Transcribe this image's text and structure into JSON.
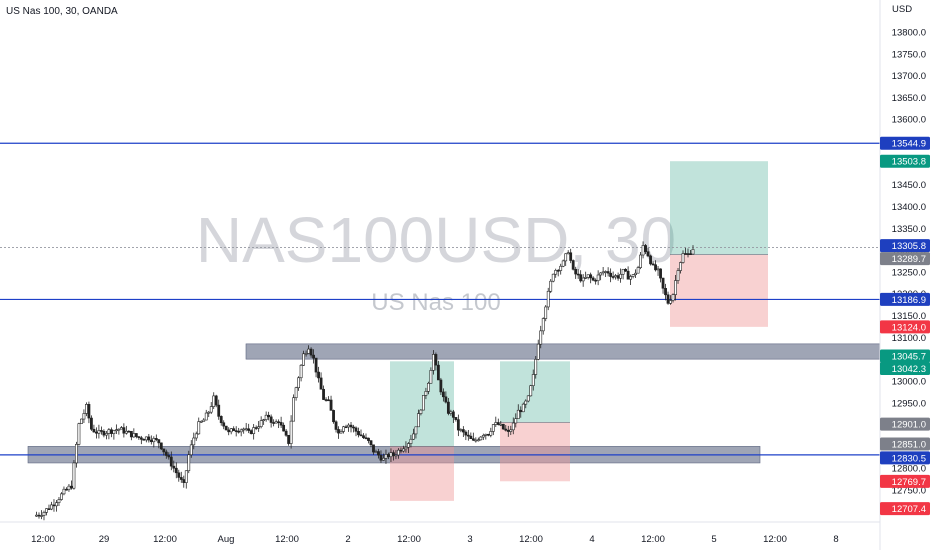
{
  "header": {
    "title": "US Nas 100, 30, OANDA"
  },
  "watermark": {
    "symbol": "NAS100USD, 30",
    "name": "US Nas 100"
  },
  "currency": "USD",
  "colors": {
    "level_line": "#1e40c8",
    "zone_fill": "#7a8299",
    "profit_fill": "#3fa98f",
    "loss_fill": "#ef9a9a",
    "bull": "#26a69a",
    "bear": "#ef5350",
    "candle": "#222222",
    "badge_blue": "#1e3fbf",
    "badge_green": "#089981",
    "badge_red": "#f23645",
    "badge_gray": "#7d808a",
    "badge_dark": "#5d606b"
  },
  "chart_data": {
    "type": "candlestick",
    "symbol": "NAS100USD",
    "timeframe": "30",
    "ylim": [
      12690,
      13870
    ],
    "y_ticks": [
      12750,
      12800,
      12850,
      12900,
      12950,
      13000,
      13050,
      13100,
      13150,
      13200,
      13250,
      13300,
      13350,
      13400,
      13450,
      13500,
      13550,
      13600,
      13650,
      13700,
      13750,
      13800
    ],
    "x_ticks": [
      "12:00",
      "29",
      "12:00",
      "Aug",
      "12:00",
      "2",
      "12:00",
      "3",
      "12:00",
      "4",
      "12:00",
      "5",
      "12:00",
      "8"
    ],
    "path": [
      [
        0,
        12690
      ],
      [
        4,
        12700
      ],
      [
        8,
        12720
      ],
      [
        12,
        12745
      ],
      [
        15,
        12760
      ],
      [
        18,
        12900
      ],
      [
        21,
        12940
      ],
      [
        23,
        12890
      ],
      [
        26,
        12880
      ],
      [
        30,
        12885
      ],
      [
        34,
        12890
      ],
      [
        38,
        12880
      ],
      [
        42,
        12870
      ],
      [
        46,
        12870
      ],
      [
        50,
        12860
      ],
      [
        53,
        12830
      ],
      [
        56,
        12800
      ],
      [
        58,
        12780
      ],
      [
        60,
        12760
      ],
      [
        62,
        12830
      ],
      [
        64,
        12870
      ],
      [
        66,
        12900
      ],
      [
        68,
        12910
      ],
      [
        70,
        12930
      ],
      [
        72,
        12960
      ],
      [
        74,
        12920
      ],
      [
        76,
        12900
      ],
      [
        78,
        12880
      ],
      [
        80,
        12890
      ],
      [
        82,
        12890
      ],
      [
        84,
        12890
      ],
      [
        86,
        12880
      ],
      [
        88,
        12890
      ],
      [
        90,
        12900
      ],
      [
        92,
        12910
      ],
      [
        94,
        12920
      ],
      [
        96,
        12900
      ],
      [
        98,
        12910
      ],
      [
        100,
        12880
      ],
      [
        102,
        12860
      ],
      [
        104,
        12960
      ],
      [
        106,
        13010
      ],
      [
        108,
        13060
      ],
      [
        110,
        13080
      ],
      [
        112,
        13050
      ],
      [
        114,
        13000
      ],
      [
        116,
        12960
      ],
      [
        118,
        12950
      ],
      [
        120,
        12910
      ],
      [
        122,
        12880
      ],
      [
        124,
        12900
      ],
      [
        126,
        12900
      ],
      [
        128,
        12890
      ],
      [
        130,
        12880
      ],
      [
        132,
        12870
      ],
      [
        134,
        12860
      ],
      [
        136,
        12840
      ],
      [
        138,
        12830
      ],
      [
        140,
        12820
      ],
      [
        142,
        12830
      ],
      [
        144,
        12830
      ],
      [
        146,
        12840
      ],
      [
        148,
        12850
      ],
      [
        150,
        12860
      ],
      [
        152,
        12880
      ],
      [
        154,
        12920
      ],
      [
        156,
        12960
      ],
      [
        158,
        13000
      ],
      [
        160,
        13060
      ],
      [
        162,
        13000
      ],
      [
        164,
        12960
      ],
      [
        166,
        12930
      ],
      [
        168,
        12920
      ],
      [
        170,
        12890
      ],
      [
        172,
        12880
      ],
      [
        174,
        12870
      ],
      [
        176,
        12860
      ],
      [
        178,
        12870
      ],
      [
        180,
        12880
      ],
      [
        182,
        12880
      ],
      [
        184,
        12900
      ],
      [
        186,
        12900
      ],
      [
        188,
        12890
      ],
      [
        190,
        12880
      ],
      [
        192,
        12900
      ],
      [
        194,
        12930
      ],
      [
        196,
        12940
      ],
      [
        198,
        12960
      ],
      [
        200,
        13010
      ],
      [
        202,
        13090
      ],
      [
        204,
        13150
      ],
      [
        206,
        13200
      ],
      [
        208,
        13250
      ],
      [
        210,
        13260
      ],
      [
        212,
        13270
      ],
      [
        214,
        13300
      ],
      [
        216,
        13250
      ],
      [
        218,
        13240
      ],
      [
        220,
        13230
      ],
      [
        222,
        13240
      ],
      [
        224,
        13230
      ],
      [
        226,
        13240
      ],
      [
        228,
        13250
      ],
      [
        230,
        13250
      ],
      [
        232,
        13240
      ],
      [
        234,
        13240
      ],
      [
        236,
        13250
      ],
      [
        238,
        13240
      ],
      [
        240,
        13240
      ],
      [
        242,
        13260
      ],
      [
        244,
        13310
      ],
      [
        246,
        13290
      ],
      [
        248,
        13260
      ],
      [
        250,
        13250
      ],
      [
        252,
        13210
      ],
      [
        254,
        13180
      ],
      [
        256,
        13200
      ],
      [
        258,
        13260
      ],
      [
        260,
        13290
      ],
      [
        262,
        13290
      ],
      [
        264,
        13305
      ]
    ],
    "time_axis": {
      "t_end": 264,
      "x_start": 34,
      "x_end": 693
    },
    "levels": [
      13544.9,
      13186.9,
      12830.5
    ],
    "zones": [
      {
        "x0": 246,
        "x1": 880,
        "top": 13085,
        "bottom": 13050
      },
      {
        "x0": 28,
        "x1": 760,
        "top": 12850,
        "bottom": 12812
      }
    ],
    "positions": [
      {
        "x0": 390,
        "x1": 454,
        "entry": 12850,
        "target": 13045,
        "stop": 12725
      },
      {
        "x0": 500,
        "x1": 570,
        "entry": 12905,
        "target": 13045,
        "stop": 12770
      },
      {
        "x0": 670,
        "x1": 768,
        "entry": 13289.7,
        "target": 13503.8,
        "stop": 13124.0
      }
    ],
    "current_price": 13305.8,
    "price_labels": [
      {
        "value": "13544.9",
        "y": 13544.9,
        "color": "badge_blue"
      },
      {
        "value": "13503.8",
        "y": 13503.8,
        "color": "badge_green"
      },
      {
        "value": "13305.8",
        "y": 13305.8,
        "color": "badge_blue"
      },
      {
        "value": "13289.7",
        "y": 13289.7,
        "color": "badge_gray"
      },
      {
        "value": "13186.9",
        "y": 13186.9,
        "color": "badge_blue"
      },
      {
        "value": "13124.0",
        "y": 13124.0,
        "color": "badge_red"
      },
      {
        "value": "13045.7",
        "y": 13045.7,
        "color": "badge_green"
      },
      {
        "value": "13042.3",
        "y": 13042.3,
        "color": "badge_green"
      },
      {
        "value": "12901.0",
        "y": 12901.0,
        "color": "badge_gray"
      },
      {
        "value": "12851.0",
        "y": 12851.0,
        "color": "badge_gray"
      },
      {
        "value": "12830.5",
        "y": 12830.5,
        "color": "badge_blue"
      },
      {
        "value": "12769.7",
        "y": 12769.7,
        "color": "badge_red"
      },
      {
        "value": "12707.4",
        "y": 12707.4,
        "color": "badge_red"
      }
    ]
  }
}
